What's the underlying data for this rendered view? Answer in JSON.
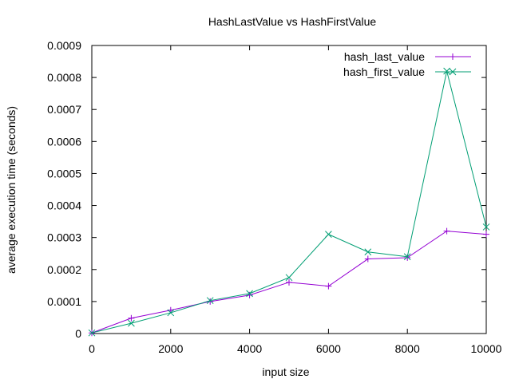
{
  "chart_data": {
    "type": "line",
    "title": "HashLastValue vs HashFirstValue",
    "xlabel": "input size",
    "ylabel": "average execution time (seconds)",
    "xlim": [
      0,
      10000
    ],
    "ylim": [
      0,
      0.0009
    ],
    "x_ticks": [
      "0",
      "2000",
      "4000",
      "6000",
      "8000",
      "10000"
    ],
    "x_tick_values": [
      0,
      2000,
      4000,
      6000,
      8000,
      10000
    ],
    "y_ticks": [
      "0",
      "0.0001",
      "0.0002",
      "0.0003",
      "0.0004",
      "0.0005",
      "0.0006",
      "0.0007",
      "0.0008",
      "0.0009"
    ],
    "y_tick_values": [
      0,
      0.0001,
      0.0002,
      0.0003,
      0.0004,
      0.0005,
      0.0006,
      0.0007,
      0.0008,
      0.0009
    ],
    "grid": false,
    "legend_position": "top-right",
    "x": [
      0,
      1000,
      2000,
      3000,
      4000,
      5000,
      6000,
      7000,
      8000,
      9000,
      10000
    ],
    "series": [
      {
        "name": "hash_last_value",
        "color": "#9400d3",
        "marker": "plus",
        "values": [
          2e-06,
          4.8e-05,
          7.3e-05,
          0.0001,
          0.00012,
          0.00016,
          0.000148,
          0.000233,
          0.000237,
          0.00032,
          0.00031
        ]
      },
      {
        "name": "hash_first_value",
        "color": "#009e73",
        "marker": "cross",
        "values": [
          2e-06,
          3.2e-05,
          6.5e-05,
          0.000103,
          0.000125,
          0.000175,
          0.00031,
          0.000255,
          0.00024,
          0.00082,
          0.000333
        ]
      }
    ]
  }
}
